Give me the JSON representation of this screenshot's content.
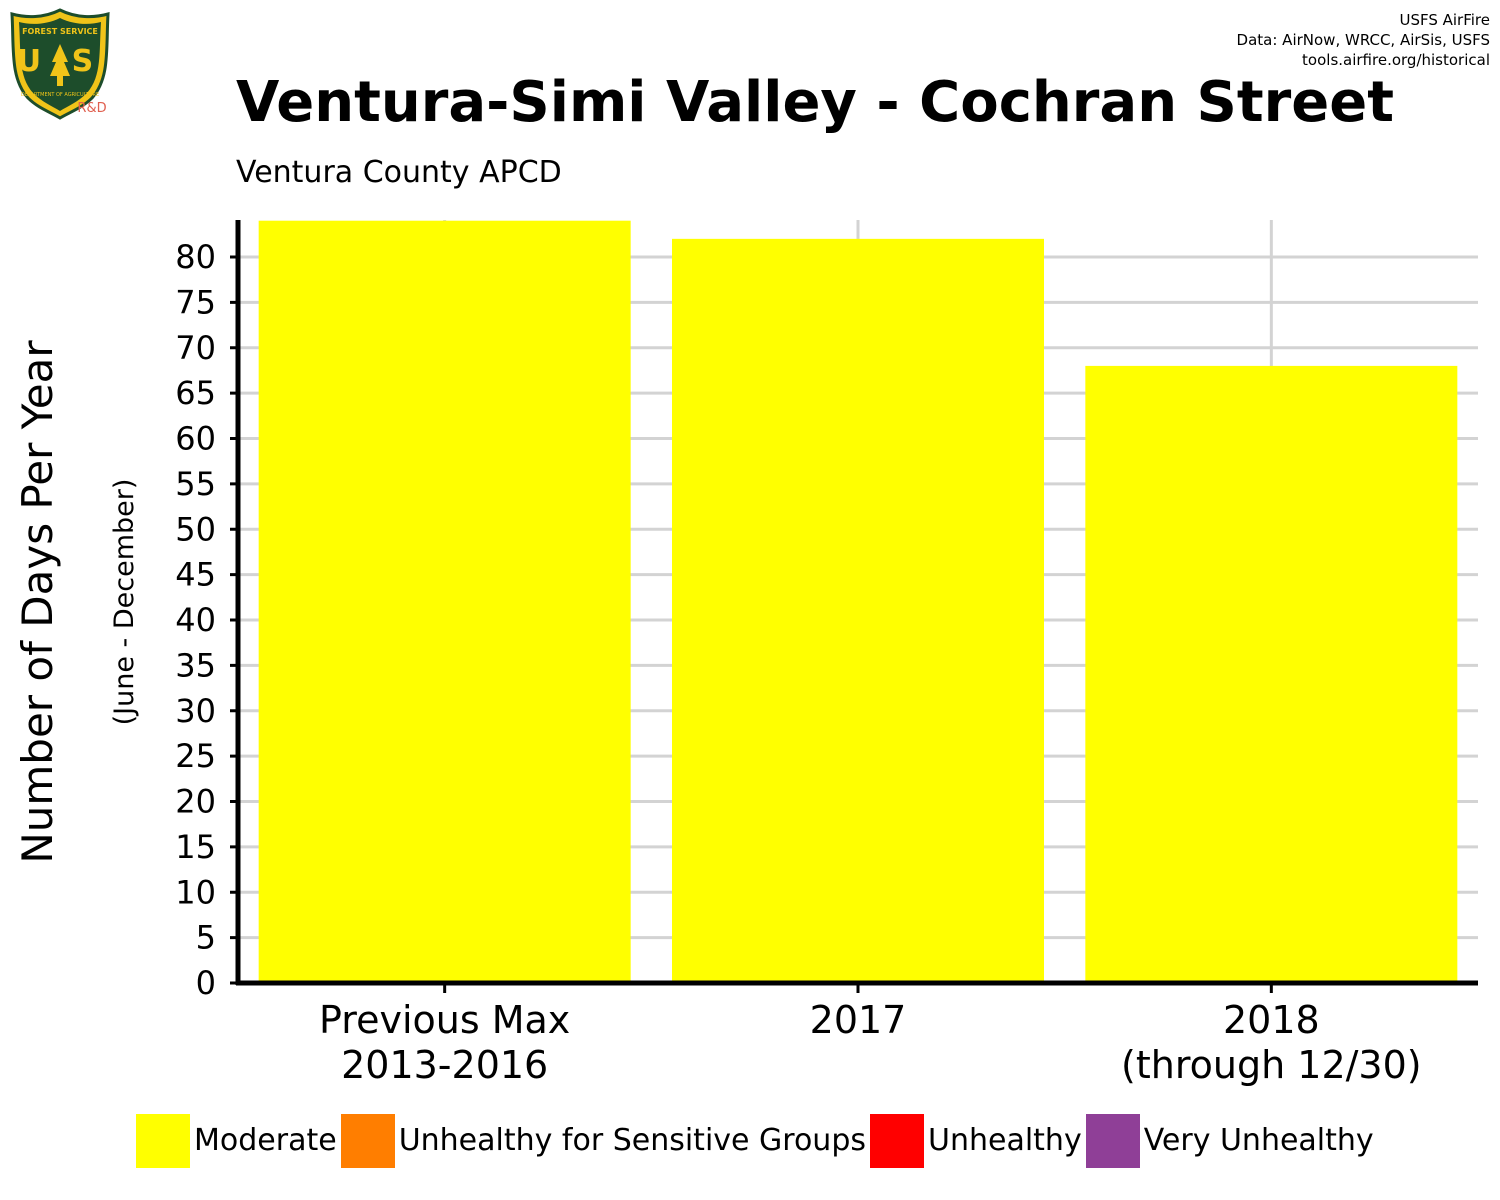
{
  "credits": {
    "line1": "USFS AirFire",
    "line2": "Data: AirNow, WRCC, AirSis, USFS",
    "line3": "tools.airfire.org/historical"
  },
  "logo": {
    "top_text": "FOREST SERVICE",
    "center_text": "U S",
    "bottom_text": "DEPARTMENT OF AGRICULTURE",
    "badge": "R&D"
  },
  "colors": {
    "moderate": "#ffff00",
    "usg": "#ff7e00",
    "unhealthy": "#ff0000",
    "very_unhealthy": "#8f3f97",
    "grid": "#d3d3d3",
    "axis": "#000000"
  },
  "chart_data": {
    "type": "bar",
    "title": "Ventura-Simi Valley - Cochran Street",
    "subtitle": "Ventura County  APCD",
    "ylabel": "Number of Days Per Year",
    "ylabel_sub": "(June - December)",
    "xlabel": "",
    "categories": [
      "Previous Max\n2013-2016",
      "2017",
      "2018\n(through 12/30)"
    ],
    "series": [
      {
        "name": "Moderate",
        "color": "#ffff00",
        "values": [
          84,
          82,
          68
        ]
      },
      {
        "name": "Unhealthy for Sensitive Groups",
        "color": "#ff7e00",
        "values": [
          0,
          0,
          0
        ]
      },
      {
        "name": "Unhealthy",
        "color": "#ff0000",
        "values": [
          0,
          0,
          0
        ]
      },
      {
        "name": "Very Unhealthy",
        "color": "#8f3f97",
        "values": [
          0,
          0,
          0
        ]
      }
    ],
    "yticks": [
      0,
      5,
      10,
      15,
      20,
      25,
      30,
      35,
      40,
      45,
      50,
      55,
      60,
      65,
      70,
      75,
      80
    ],
    "ylim": [
      0,
      84
    ],
    "grid": true,
    "legend_position": "bottom"
  },
  "legend": [
    {
      "label": "Moderate",
      "color": "#ffff00"
    },
    {
      "label": "Unhealthy for Sensitive Groups",
      "color": "#ff7e00"
    },
    {
      "label": "Unhealthy",
      "color": "#ff0000"
    },
    {
      "label": "Very Unhealthy",
      "color": "#8f3f97"
    }
  ]
}
